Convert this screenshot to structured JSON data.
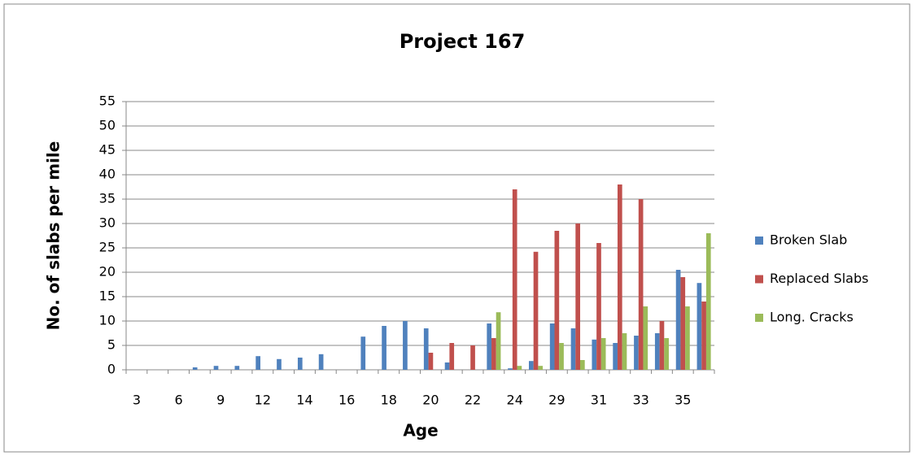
{
  "chart_data": {
    "type": "bar",
    "title": "Project 167",
    "x_label": "Age",
    "y_label": "No. of slabs per mile",
    "categories": [
      "3",
      null,
      "6",
      null,
      "9",
      null,
      "12",
      null,
      "14",
      null,
      "16",
      null,
      "18",
      null,
      "20",
      null,
      "22",
      null,
      "24",
      null,
      "29",
      null,
      "31",
      null,
      "33",
      null,
      "35",
      null
    ],
    "series": [
      {
        "name": "Broken Slab",
        "color": "#4f81bd",
        "values": [
          0,
          0,
          0,
          0.5,
          0.8,
          0.8,
          2.8,
          2.2,
          2.5,
          3.2,
          0,
          6.8,
          9,
          10,
          8.5,
          1.5,
          0,
          9.5,
          0.3,
          1.8,
          9.5,
          8.5,
          6.2,
          5.5,
          7,
          7.5,
          20.5,
          17.8
        ]
      },
      {
        "name": "Replaced Slabs",
        "color": "#c0504d",
        "values": [
          0,
          0,
          0,
          0,
          0,
          0,
          0,
          0,
          0,
          0,
          0,
          0,
          0,
          0,
          3.5,
          5.5,
          5,
          6.5,
          37,
          24.2,
          28.5,
          30,
          26,
          38,
          35,
          10,
          19,
          14
        ]
      },
      {
        "name": "Long. Cracks",
        "color": "#9bbb59",
        "values": [
          0,
          0,
          0,
          0,
          0,
          0,
          0,
          0,
          0,
          0,
          0,
          0,
          0,
          0,
          0,
          0,
          0,
          11.8,
          0.8,
          0.8,
          5.5,
          2,
          6.5,
          7.5,
          13,
          6.5,
          13,
          28
        ]
      }
    ],
    "ylim": [
      0,
      55
    ],
    "yticks": [
      0,
      5,
      10,
      15,
      20,
      25,
      30,
      35,
      40,
      45,
      50,
      55
    ],
    "grid": true,
    "legend": "right"
  }
}
